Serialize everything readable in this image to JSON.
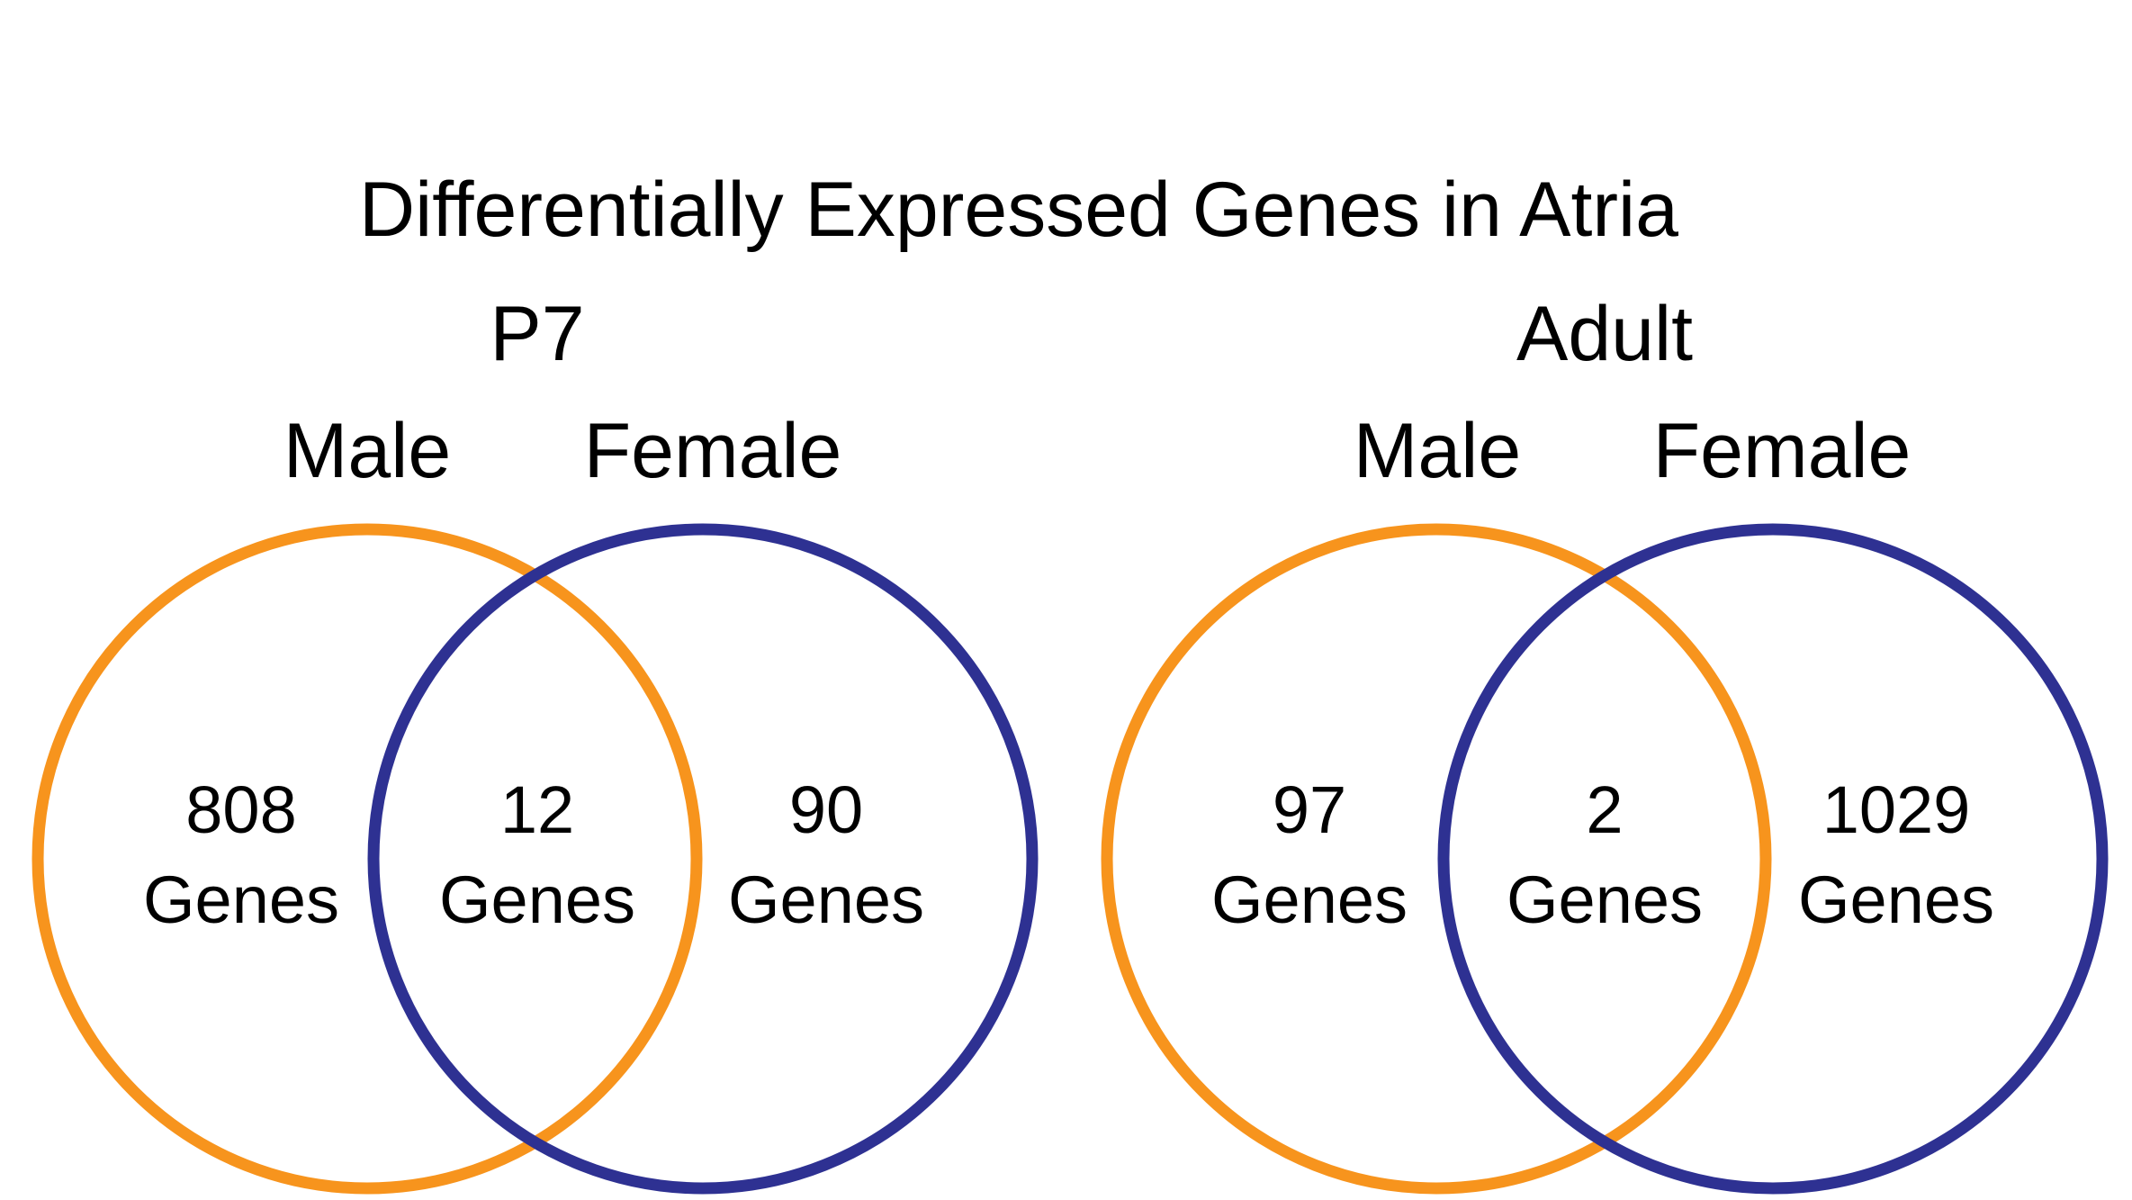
{
  "title": "Differentially Expressed Genes in Atria",
  "colors": {
    "male": "#F7941D",
    "female": "#2E3192",
    "text": "#000000"
  },
  "panels": [
    {
      "name": "P7",
      "set_a": "Male",
      "set_b": "Female",
      "only_a": {
        "count": "808",
        "unit": "Genes"
      },
      "both": {
        "count": "12",
        "unit": "Genes"
      },
      "only_b": {
        "count": "90",
        "unit": "Genes"
      }
    },
    {
      "name": "Adult",
      "set_a": "Male",
      "set_b": "Female",
      "only_a": {
        "count": "97",
        "unit": "Genes"
      },
      "both": {
        "count": "2",
        "unit": "Genes"
      },
      "only_b": {
        "count": "1029",
        "unit": "Genes"
      }
    }
  ]
}
